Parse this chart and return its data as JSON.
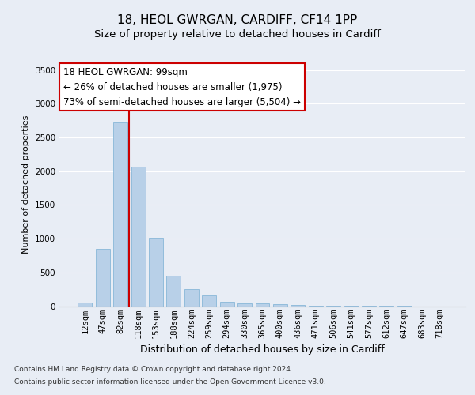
{
  "title1": "18, HEOL GWRGAN, CARDIFF, CF14 1PP",
  "title2": "Size of property relative to detached houses in Cardiff",
  "xlabel": "Distribution of detached houses by size in Cardiff",
  "ylabel": "Number of detached properties",
  "categories": [
    "12sqm",
    "47sqm",
    "82sqm",
    "118sqm",
    "153sqm",
    "188sqm",
    "224sqm",
    "259sqm",
    "294sqm",
    "330sqm",
    "365sqm",
    "400sqm",
    "436sqm",
    "471sqm",
    "506sqm",
    "541sqm",
    "577sqm",
    "612sqm",
    "647sqm",
    "683sqm",
    "718sqm"
  ],
  "values": [
    55,
    850,
    2720,
    2070,
    1010,
    450,
    250,
    155,
    70,
    45,
    40,
    30,
    20,
    10,
    5,
    3,
    2,
    1,
    1,
    0,
    0
  ],
  "bar_color": "#b8d0e8",
  "bar_edge_color": "#7aafd4",
  "vline_color": "#cc0000",
  "vline_x_index": 2,
  "annotation_text": "18 HEOL GWRGAN: 99sqm\n← 26% of detached houses are smaller (1,975)\n73% of semi-detached houses are larger (5,504) →",
  "annotation_box_color": "#ffffff",
  "annotation_box_edge": "#cc0000",
  "ylim": [
    0,
    3600
  ],
  "yticks": [
    0,
    500,
    1000,
    1500,
    2000,
    2500,
    3000,
    3500
  ],
  "bg_color": "#e8edf5",
  "plot_bg_color": "#e8edf5",
  "grid_color": "#ffffff",
  "footer1": "Contains HM Land Registry data © Crown copyright and database right 2024.",
  "footer2": "Contains public sector information licensed under the Open Government Licence v3.0.",
  "title1_fontsize": 11,
  "title2_fontsize": 9.5,
  "xlabel_fontsize": 9,
  "ylabel_fontsize": 8,
  "tick_fontsize": 7.5,
  "annotation_fontsize": 8.5,
  "footer_fontsize": 6.5
}
